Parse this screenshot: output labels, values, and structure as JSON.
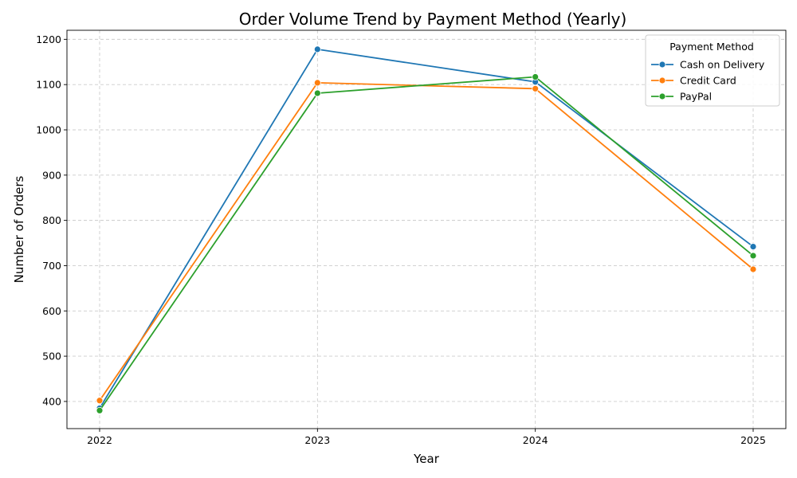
{
  "chart_data": {
    "type": "line",
    "title": "Order Volume Trend by Payment Method (Yearly)",
    "xlabel": "Year",
    "ylabel": "Number of Orders",
    "x": [
      "2022",
      "2023",
      "2024",
      "2025"
    ],
    "ylim": [
      340,
      1220
    ],
    "yticks": [
      400,
      500,
      600,
      700,
      800,
      900,
      1000,
      1100,
      1200
    ],
    "grid": true,
    "legend": {
      "title": "Payment Method",
      "placement": "top-right"
    },
    "series": [
      {
        "name": "Cash on Delivery",
        "values": [
          385,
          1178,
          1106,
          742
        ],
        "color": "#1f77b4"
      },
      {
        "name": "Credit Card",
        "values": [
          402,
          1104,
          1091,
          692
        ],
        "color": "#ff7f0e"
      },
      {
        "name": "PayPal",
        "values": [
          380,
          1081,
          1117,
          722
        ],
        "color": "#2ca02c"
      }
    ]
  }
}
